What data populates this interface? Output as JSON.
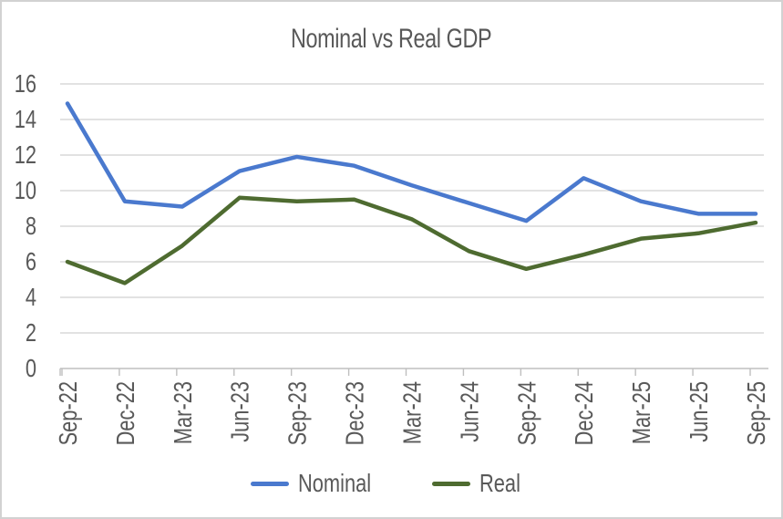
{
  "chart_data": {
    "type": "line",
    "title": "Nominal vs Real GDP",
    "xlabel": "",
    "ylabel": "",
    "categories": [
      "Sep-22",
      "Dec-22",
      "Mar-23",
      "Jun-23",
      "Sep-23",
      "Dec-23",
      "Mar-24",
      "Jun-24",
      "Sep-24",
      "Dec-24",
      "Mar-25",
      "Jun-25",
      "Sep-25"
    ],
    "series": [
      {
        "name": "Nominal",
        "color": "#4a79ce",
        "values": [
          14.9,
          9.4,
          9.1,
          11.1,
          11.9,
          11.4,
          10.3,
          9.3,
          8.3,
          10.7,
          9.4,
          8.7,
          8.7
        ]
      },
      {
        "name": "Real",
        "color": "#4e6b30",
        "values": [
          6.0,
          4.8,
          6.9,
          9.6,
          9.4,
          9.5,
          8.4,
          6.6,
          5.6,
          6.4,
          7.3,
          7.6,
          8.2
        ]
      }
    ],
    "ylim": [
      0,
      16
    ],
    "yticks": [
      0,
      2,
      4,
      6,
      8,
      10,
      12,
      14,
      16
    ],
    "grid": true,
    "legend_position": "bottom"
  },
  "colors": {
    "text": "#595959",
    "gridline": "#d9d9d9",
    "axis": "#bfbfbf",
    "border": "#d2d2d2"
  }
}
